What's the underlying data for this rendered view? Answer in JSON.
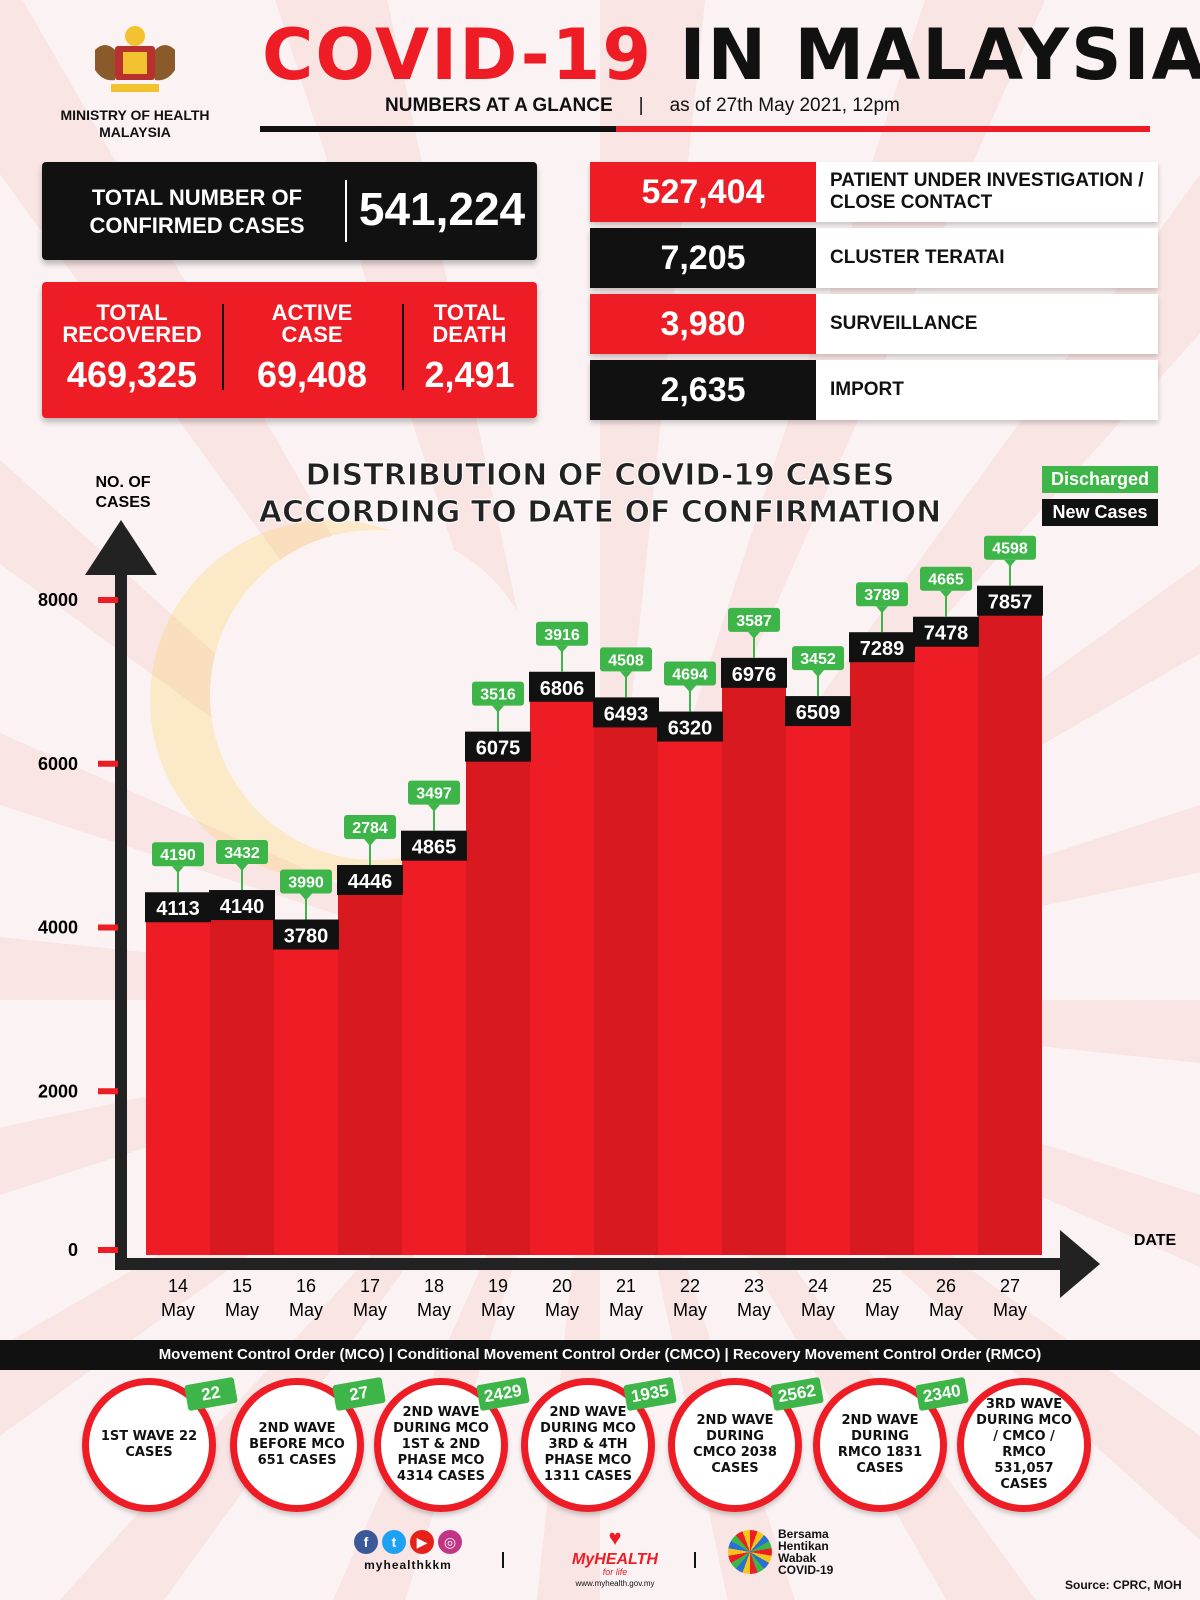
{
  "header": {
    "ministry_line1": "MINISTRY OF HEALTH",
    "ministry_line2": "MALAYSIA",
    "title_red": "COVID-19",
    "title_black": "IN MALAYSIA",
    "glance": "NUMBERS AT A GLANCE",
    "separator": "|",
    "as_of": "as of 27th May 2021, 12pm"
  },
  "totals": {
    "confirmed_label_line1": "TOTAL NUMBER OF",
    "confirmed_label_line2": "CONFIRMED CASES",
    "confirmed_value": "541,224",
    "recovered_label_line1": "TOTAL",
    "recovered_label_line2": "RECOVERED",
    "recovered_value": "469,325",
    "active_label_line1": "ACTIVE",
    "active_label_line2": "CASE",
    "active_value": "69,408",
    "death_label_line1": "TOTAL",
    "death_label_line2": "DEATH",
    "death_value": "2,491"
  },
  "categories": [
    {
      "value": "527,404",
      "label": "PATIENT UNDER INVESTIGATION / CLOSE CONTACT",
      "color": "#ee1c25"
    },
    {
      "value": "7,205",
      "label": "CLUSTER TERATAI",
      "color": "#111111"
    },
    {
      "value": "3,980",
      "label": "SURVEILLANCE",
      "color": "#ee1c25"
    },
    {
      "value": "2,635",
      "label": "IMPORT",
      "color": "#111111"
    }
  ],
  "chart_data": {
    "type": "bar",
    "title_line1": "DISTRIBUTION OF COVID-19 CASES",
    "title_line2": "ACCORDING TO DATE OF CONFIRMATION",
    "ylabel_line1": "NO. OF",
    "ylabel_line2": "CASES",
    "xlabel": "DATE",
    "yticks": [
      0,
      2000,
      4000,
      6000,
      8000
    ],
    "ylim": [
      0,
      8000
    ],
    "categories": [
      [
        "14",
        "May"
      ],
      [
        "15",
        "May"
      ],
      [
        "16",
        "May"
      ],
      [
        "17",
        "May"
      ],
      [
        "18",
        "May"
      ],
      [
        "19",
        "May"
      ],
      [
        "20",
        "May"
      ],
      [
        "21",
        "May"
      ],
      [
        "22",
        "May"
      ],
      [
        "23",
        "May"
      ],
      [
        "24",
        "May"
      ],
      [
        "25",
        "May"
      ],
      [
        "26",
        "May"
      ],
      [
        "27",
        "May"
      ]
    ],
    "series": [
      {
        "name": "New Cases",
        "color": "#111111",
        "values": [
          4113,
          4140,
          3780,
          4446,
          4865,
          6075,
          6806,
          6493,
          6320,
          6976,
          6509,
          7289,
          7478,
          7857
        ]
      },
      {
        "name": "Discharged",
        "color": "#3db548",
        "values": [
          4190,
          3432,
          3990,
          2784,
          3497,
          3516,
          3916,
          4508,
          4694,
          3587,
          3452,
          3789,
          4665,
          4598
        ]
      }
    ],
    "bar_color": "#ee1c25",
    "legend_position": "top-right"
  },
  "phases": {
    "banner": "Movement Control Order (MCO) | Conditional Movement Control Order (CMCO) | Recovery Movement Control Order (RMCO)",
    "waves": [
      {
        "text": "1ST WAVE 22 CASES",
        "badge": "22"
      },
      {
        "text": "2ND WAVE BEFORE MCO 651 CASES",
        "badge": "27"
      },
      {
        "text": "2ND WAVE DURING MCO 1ST & 2ND PHASE MCO 4314 CASES",
        "badge": "2429"
      },
      {
        "text": "2ND WAVE DURING MCO 3RD & 4TH PHASE MCO 1311 CASES",
        "badge": "1935"
      },
      {
        "text": "2ND WAVE DURING CMCO 2038 CASES",
        "badge": "2562"
      },
      {
        "text": "2ND WAVE DURING RMCO 1831 CASES",
        "badge": "2340"
      },
      {
        "text": "3RD WAVE DURING MCO / CMCO / RMCO 531,057 CASES",
        "badge": ""
      }
    ]
  },
  "footer": {
    "social_icons": [
      "facebook-icon",
      "twitter-icon",
      "youtube-icon",
      "instagram-icon"
    ],
    "handle": "myhealthkkm",
    "myhealth": "MyHEALTH",
    "myhealth_tag": "for life",
    "myhealth_url": "www.myhealth.gov.my",
    "bersama_line1": "Bersama",
    "bersama_line2": "Hentikan",
    "bersama_line3": "Wabak",
    "bersama_line4": "COVID-19",
    "source": "Source: CPRC, MOH"
  }
}
